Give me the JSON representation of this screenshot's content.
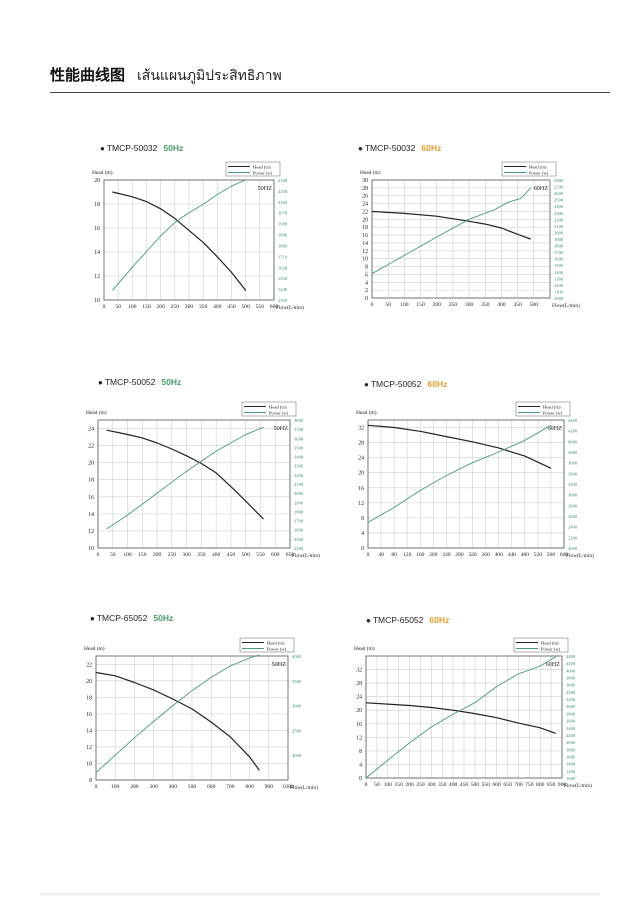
{
  "header": {
    "title_zh": "性能曲线图",
    "title_th": "เส้นแผนภูมิประสิทธิภาพ"
  },
  "chart_data": [
    {
      "type": "line",
      "model": "TMCP-50032",
      "hz_label": "50Hz",
      "hz_color": "#4a9a6a",
      "inner_label": "50HZ",
      "xlabel": "Flow(L/min)",
      "ylabel": "Head (m)",
      "legend": [
        "Head (m)",
        "Power (w)"
      ],
      "legend_position": "top-right",
      "xlim": [
        0,
        600
      ],
      "xticks": [
        0,
        50,
        100,
        150,
        200,
        250,
        300,
        350,
        400,
        450,
        500,
        550,
        600
      ],
      "ylim": [
        10,
        20
      ],
      "yticks": [
        10,
        12,
        14,
        16,
        18,
        20
      ],
      "y2lim": [
        1350,
        2340
      ],
      "y2ticks": [
        1350,
        1440,
        1530,
        1620,
        1710,
        1800,
        1890,
        1980,
        2070,
        2160,
        2250,
        2340
      ],
      "grid": true,
      "series": [
        {
          "name": "Head (m)",
          "axis": "left",
          "color": "#222222",
          "x": [
            30,
            100,
            150,
            200,
            250,
            300,
            350,
            400,
            450,
            500
          ],
          "y": [
            19.0,
            18.6,
            18.2,
            17.6,
            16.8,
            15.8,
            14.8,
            13.6,
            12.3,
            10.8
          ]
        },
        {
          "name": "Power (w)",
          "axis": "right",
          "color": "#4a9a7a",
          "x": [
            30,
            100,
            150,
            200,
            250,
            300,
            350,
            400,
            450,
            500
          ],
          "y": [
            1430,
            1620,
            1750,
            1880,
            1990,
            2070,
            2140,
            2220,
            2290,
            2340
          ]
        }
      ]
    },
    {
      "type": "line",
      "model": "TMCP-50032",
      "hz_label": "60Hz",
      "hz_color": "#e0a030",
      "inner_label": "60HZ",
      "xlabel": "Flow(L/min)",
      "ylabel": "Head (m)",
      "legend": [
        "Head (m)",
        "Power (w)"
      ],
      "legend_position": "top-right",
      "xlim": [
        0,
        550
      ],
      "xticks": [
        0,
        50,
        100,
        150,
        200,
        250,
        300,
        350,
        400,
        450,
        500
      ],
      "ylim": [
        0,
        30
      ],
      "yticks": [
        0,
        2,
        4,
        6,
        8,
        10,
        12,
        14,
        16,
        18,
        20,
        22,
        24,
        26,
        28,
        30
      ],
      "y2lim": [
        1000,
        2800
      ],
      "y2ticks": [
        1000,
        1100,
        1200,
        1300,
        1400,
        1500,
        1600,
        1700,
        1800,
        1900,
        2000,
        2100,
        2200,
        2300,
        2400,
        2500,
        2600,
        2700,
        2800
      ],
      "grid": true,
      "series": [
        {
          "name": "Head (m)",
          "axis": "left",
          "color": "#222222",
          "x": [
            0,
            100,
            200,
            300,
            350,
            400,
            450,
            490
          ],
          "y": [
            22.0,
            21.5,
            20.8,
            19.5,
            18.8,
            17.8,
            16.2,
            15.0
          ]
        },
        {
          "name": "Power (w)",
          "axis": "right",
          "color": "#4a9a7a",
          "x": [
            0,
            100,
            200,
            300,
            380,
            420,
            460,
            490
          ],
          "y": [
            1370,
            1650,
            1930,
            2200,
            2350,
            2460,
            2520,
            2680
          ]
        }
      ]
    },
    {
      "type": "line",
      "model": "TMCP-50052",
      "hz_label": "50Hz",
      "hz_color": "#4a9a6a",
      "inner_label": "50HZ",
      "xlabel": "Flow(L/min)",
      "ylabel": "Head (m)",
      "legend": [
        "Head (m)",
        "Power (w)"
      ],
      "legend_position": "top-right",
      "xlim": [
        0,
        650
      ],
      "xticks": [
        0,
        50,
        100,
        150,
        200,
        250,
        300,
        350,
        400,
        450,
        500,
        550,
        600,
        650
      ],
      "ylim": [
        10,
        25
      ],
      "yticks": [
        10,
        12,
        14,
        16,
        18,
        20,
        22,
        24
      ],
      "y2lim": [
        2400,
        3800
      ],
      "y2ticks": [
        2400,
        2500,
        2600,
        2700,
        2800,
        2900,
        3000,
        3100,
        3200,
        3300,
        3400,
        3500,
        3600,
        3700,
        3800
      ],
      "grid": true,
      "series": [
        {
          "name": "Head (m)",
          "axis": "left",
          "color": "#222222",
          "x": [
            30,
            100,
            150,
            200,
            250,
            300,
            350,
            400,
            450,
            500,
            560
          ],
          "y": [
            23.8,
            23.3,
            22.9,
            22.3,
            21.6,
            20.8,
            19.9,
            18.8,
            17.2,
            15.5,
            13.4
          ]
        },
        {
          "name": "Power (w)",
          "axis": "right",
          "color": "#4a9a7a",
          "x": [
            30,
            100,
            150,
            200,
            250,
            300,
            350,
            400,
            450,
            500,
            560
          ],
          "y": [
            2610,
            2760,
            2880,
            3000,
            3120,
            3240,
            3350,
            3460,
            3550,
            3640,
            3720
          ]
        }
      ]
    },
    {
      "type": "line",
      "model": "TMCP-50052",
      "hz_label": "60Hz",
      "hz_color": "#e0a030",
      "inner_label": "60HZ",
      "xlabel": "Flow(L/min)",
      "ylabel": "Head (m)",
      "legend": [
        "Head (m)",
        "Power (w)"
      ],
      "legend_position": "top-right",
      "xlim": [
        0,
        600
      ],
      "xticks": [
        0,
        40,
        80,
        120,
        160,
        200,
        240,
        280,
        320,
        360,
        400,
        440,
        480,
        520,
        560,
        600
      ],
      "ylim": [
        0,
        34
      ],
      "yticks": [
        0,
        4,
        8,
        12,
        16,
        20,
        24,
        28,
        32
      ],
      "y2lim": [
        2000,
        4400
      ],
      "y2ticks": [
        2000,
        2200,
        2400,
        2600,
        2800,
        3000,
        3200,
        3400,
        3600,
        3800,
        4000,
        4200,
        4400
      ],
      "grid": true,
      "series": [
        {
          "name": "Head (m)",
          "axis": "left",
          "color": "#222222",
          "x": [
            0,
            80,
            160,
            240,
            320,
            400,
            480,
            520,
            560
          ],
          "y": [
            32.6,
            32.0,
            31.0,
            29.6,
            28.2,
            26.6,
            24.4,
            22.8,
            21.2
          ]
        },
        {
          "name": "Power (w)",
          "axis": "right",
          "color": "#4a9a7a",
          "x": [
            0,
            80,
            160,
            240,
            320,
            400,
            480,
            520,
            560
          ],
          "y": [
            2480,
            2760,
            3080,
            3360,
            3600,
            3800,
            4020,
            4160,
            4300
          ]
        }
      ]
    },
    {
      "type": "line",
      "model": "TMCP-65052",
      "hz_label": "50Hz",
      "hz_color": "#4a9a6a",
      "inner_label": "50HZ",
      "xlabel": "Flow(L/min)",
      "ylabel": "Head (m)",
      "legend": [
        "Head (m)",
        "Power (w)"
      ],
      "legend_position": "top-right",
      "xlim": [
        0,
        1000
      ],
      "xticks": [
        0,
        100,
        200,
        300,
        400,
        500,
        600,
        700,
        800,
        900,
        1000
      ],
      "ylim": [
        8,
        23
      ],
      "yticks": [
        8,
        10,
        12,
        14,
        16,
        18,
        20,
        22
      ],
      "y2lim": [
        1500,
        4000
      ],
      "y2ticks": [
        2000,
        2500,
        3000,
        3500,
        4000
      ],
      "grid": true,
      "series": [
        {
          "name": "Head (m)",
          "axis": "left",
          "color": "#222222",
          "x": [
            0,
            100,
            200,
            300,
            400,
            500,
            600,
            700,
            800,
            850
          ],
          "y": [
            21.0,
            20.6,
            19.8,
            18.9,
            17.8,
            16.6,
            15.0,
            13.2,
            10.8,
            9.2
          ]
        },
        {
          "name": "Power (w)",
          "axis": "right",
          "color": "#4a9a7a",
          "x": [
            0,
            100,
            200,
            300,
            400,
            500,
            600,
            700,
            800,
            850
          ],
          "y": [
            1650,
            2000,
            2350,
            2680,
            3000,
            3300,
            3570,
            3800,
            3960,
            4020
          ]
        }
      ]
    },
    {
      "type": "line",
      "model": "TMCP-65052",
      "hz_label": "60Hz",
      "hz_color": "#e0a030",
      "inner_label": "60HZ",
      "xlabel": "Flow(L/min)",
      "ylabel": "Head (m)",
      "legend": [
        "Head (m)",
        "Power (w)"
      ],
      "legend_position": "top-right",
      "xlim": [
        0,
        900
      ],
      "xticks": [
        0,
        50,
        100,
        150,
        200,
        250,
        300,
        350,
        400,
        450,
        500,
        550,
        600,
        650,
        700,
        750,
        800,
        850,
        900
      ],
      "ylim": [
        0,
        36
      ],
      "yticks": [
        0,
        4,
        8,
        12,
        16,
        20,
        24,
        28,
        32
      ],
      "y2lim": [
        1000,
        4400
      ],
      "y2ticks": [
        1000,
        1200,
        1400,
        1600,
        1800,
        2000,
        2200,
        2400,
        2600,
        2800,
        3000,
        3200,
        3400,
        3600,
        3800,
        4000,
        4200,
        4400
      ],
      "grid": true,
      "series": [
        {
          "name": "Head (m)",
          "axis": "left",
          "color": "#222222",
          "x": [
            0,
            100,
            200,
            300,
            400,
            500,
            600,
            700,
            800,
            870
          ],
          "y": [
            22.2,
            21.8,
            21.4,
            20.8,
            20.0,
            19.0,
            17.8,
            16.2,
            14.8,
            13.2
          ]
        },
        {
          "name": "Power (w)",
          "axis": "right",
          "color": "#4a9a7a",
          "x": [
            0,
            100,
            200,
            300,
            400,
            500,
            600,
            700,
            800,
            870
          ],
          "y": [
            1000,
            1500,
            1980,
            2420,
            2780,
            3100,
            3550,
            3900,
            4120,
            4380
          ]
        }
      ]
    }
  ]
}
